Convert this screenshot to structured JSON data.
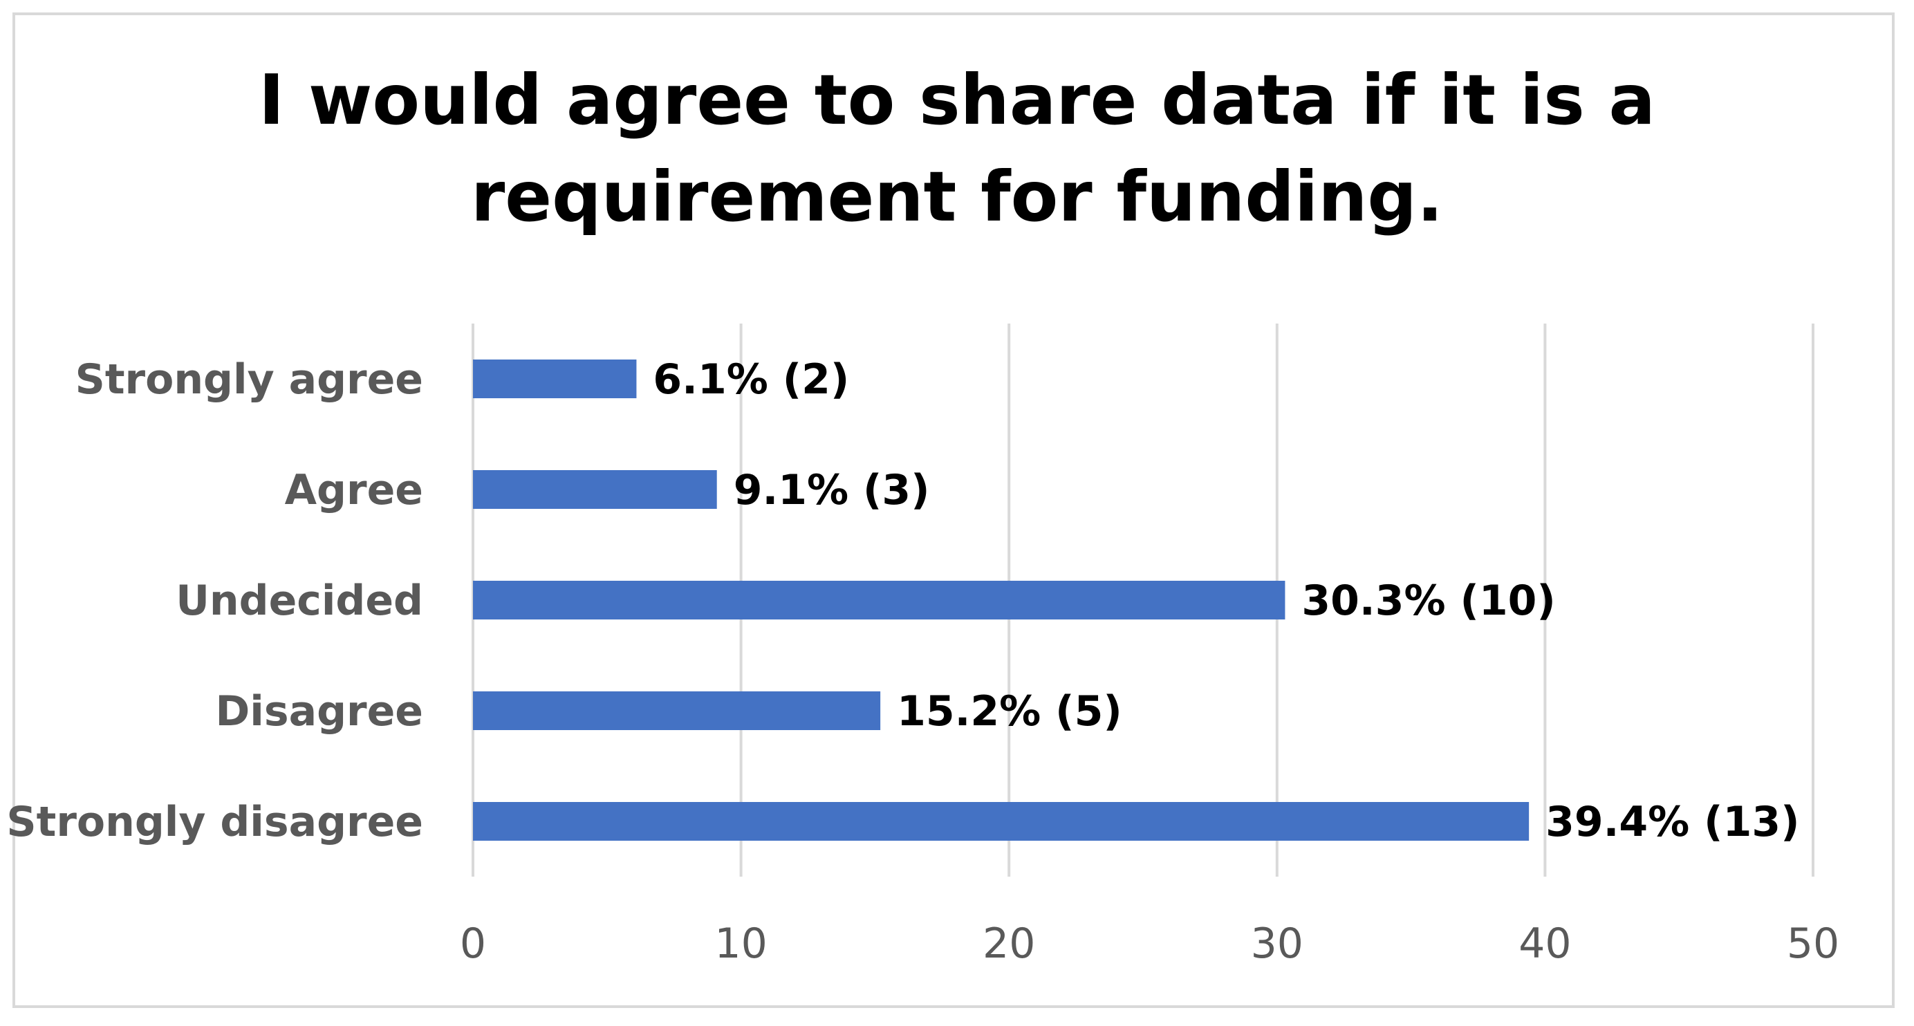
{
  "chart_data": {
    "type": "bar",
    "orientation": "horizontal",
    "title": "I would agree to share data if it is a\nrequirement for funding.",
    "categories": [
      "Strongly agree",
      "Agree",
      "Undecided",
      "Disagree",
      "Strongly disagree"
    ],
    "values": [
      2,
      3,
      10,
      5,
      13
    ],
    "value_axis_values": [
      6.1,
      9.1,
      30.3,
      15.2,
      39.4
    ],
    "data_labels": [
      "6.1% (2)",
      "9.1% (3)",
      "30.3% (10)",
      "15.2% (5)",
      "39.4% (13)"
    ],
    "xlim": [
      0,
      50
    ],
    "xticks": [
      0,
      10,
      20,
      30,
      40,
      50
    ],
    "xlabel": "",
    "ylabel": "",
    "grid": true,
    "legend": "none",
    "bar_color": "#4472c4",
    "grid_color": "#d9d9d9"
  }
}
